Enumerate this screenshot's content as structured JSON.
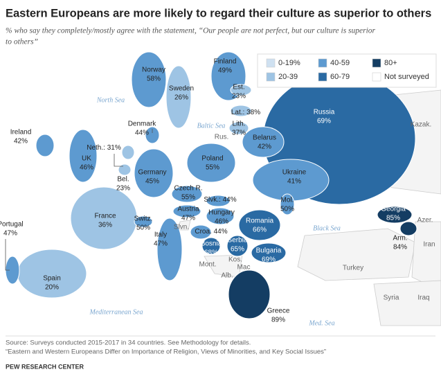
{
  "map": {
    "title": "Eastern Europeans are more likely to regard their culture as superior to others",
    "subtitle": [
      "% who say they completely/mostly agree with the statement, “Our people are not perfect, but our culture is superior",
      "to others”"
    ],
    "legend": [
      {
        "label": "0-19%",
        "color": "#cfe1f1"
      },
      {
        "label": "20-39",
        "color": "#9ec4e4"
      },
      {
        "label": "40-59",
        "color": "#5d9ad0"
      },
      {
        "label": "60-79",
        "color": "#2a6aa3"
      },
      {
        "label": "80+",
        "color": "#143d63"
      },
      {
        "label": "Not surveyed",
        "color": "#ffffff"
      }
    ],
    "countries": [
      {
        "name": "Finland",
        "value": 49,
        "value_label": "49%",
        "color": "#5d9ad0"
      },
      {
        "name": "Norway",
        "value": 58,
        "value_label": "58%",
        "color": "#5d9ad0"
      },
      {
        "name": "Sweden",
        "value": 26,
        "value_label": "26%",
        "color": "#9ec4e4"
      },
      {
        "name": "Est.",
        "value": 23,
        "value_label": "23%",
        "color": "#9ec4e4"
      },
      {
        "name": "Lat.:",
        "value": 38,
        "value_label": "38%",
        "color": "#9ec4e4"
      },
      {
        "name": "Lith.",
        "value": 37,
        "value_label": "37%",
        "color": "#9ec4e4"
      },
      {
        "name": "Russia",
        "value": 69,
        "value_label": "69%",
        "color": "#2a6aa3"
      },
      {
        "name": "Denmark",
        "value": 44,
        "value_label": "44%",
        "color": "#5d9ad0"
      },
      {
        "name": "Ireland",
        "value": 42,
        "value_label": "42%",
        "color": "#5d9ad0"
      },
      {
        "name": "UK",
        "value": 46,
        "value_label": "46%",
        "color": "#5d9ad0"
      },
      {
        "name": "Neth.:",
        "value": 31,
        "value_label": "31%",
        "color": "#9ec4e4"
      },
      {
        "name": "Bel.",
        "value": 23,
        "value_label": "23%",
        "color": "#9ec4e4"
      },
      {
        "name": "Germany",
        "value": 45,
        "value_label": "45%",
        "color": "#5d9ad0"
      },
      {
        "name": "Poland",
        "value": 55,
        "value_label": "55%",
        "color": "#5d9ad0"
      },
      {
        "name": "Belarus",
        "value": 42,
        "value_label": "42%",
        "color": "#5d9ad0"
      },
      {
        "name": "Ukraine",
        "value": 41,
        "value_label": "41%",
        "color": "#5d9ad0"
      },
      {
        "name": "Czech R.",
        "value": 55,
        "value_label": "55%",
        "color": "#5d9ad0"
      },
      {
        "name": "Slvk.:",
        "value": 44,
        "value_label": "44%",
        "color": "#5d9ad0"
      },
      {
        "name": "Austria",
        "value": 47,
        "value_label": "47%",
        "color": "#5d9ad0"
      },
      {
        "name": "Hungary",
        "value": 46,
        "value_label": "46%",
        "color": "#5d9ad0"
      },
      {
        "name": "Mol.",
        "value": 50,
        "value_label": "50%",
        "color": "#5d9ad0"
      },
      {
        "name": "Romania",
        "value": 66,
        "value_label": "66%",
        "color": "#2a6aa3"
      },
      {
        "name": "France",
        "value": 36,
        "value_label": "36%",
        "color": "#9ec4e4"
      },
      {
        "name": "Switz.",
        "value": 50,
        "value_label": "50%",
        "color": "#5d9ad0"
      },
      {
        "name": "Italy",
        "value": 47,
        "value_label": "47%",
        "color": "#5d9ad0"
      },
      {
        "name": "Croa.",
        "value": 44,
        "value_label": "44%",
        "color": "#5d9ad0"
      },
      {
        "name": "Bosnia",
        "value": 68,
        "value_label": "68%",
        "color": "#2a6aa3"
      },
      {
        "name": "Serbia",
        "value": 65,
        "value_label": "65%",
        "color": "#2a6aa3"
      },
      {
        "name": "Bulgaria",
        "value": 69,
        "value_label": "69%",
        "color": "#2a6aa3"
      },
      {
        "name": "Georgia",
        "value": 85,
        "value_label": "85%",
        "color": "#143d63"
      },
      {
        "name": "Arm.",
        "value": 84,
        "value_label": "84%",
        "color": "#143d63"
      },
      {
        "name": "Greece",
        "value": 89,
        "value_label": "89%",
        "color": "#143d63"
      },
      {
        "name": "Portugal",
        "value": 47,
        "value_label": "47%",
        "color": "#5d9ad0"
      },
      {
        "name": "Spain",
        "value": 20,
        "value_label": "20%",
        "color": "#9ec4e4"
      }
    ],
    "other_labels": [
      "Kazak.",
      "Azer.",
      "Iran",
      "Turkey",
      "Syria",
      "Iraq",
      "Slvn.",
      "Mont.",
      "Kos.",
      "Mac",
      "Alb.",
      "Rus."
    ],
    "seas": [
      "North Sea",
      "Baltic Sea",
      "Black Sea",
      "Mediterranean Sea",
      "Med. Sea"
    ],
    "source": [
      "Source: Surveys conducted 2015-2017 in 34 countries. See Methodology for details.",
      "“Eastern and Western Europeans Differ on Importance of Religion, Views of Minorities, and Key Social Issues”"
    ],
    "footer": "PEW RESEARCH CENTER"
  }
}
